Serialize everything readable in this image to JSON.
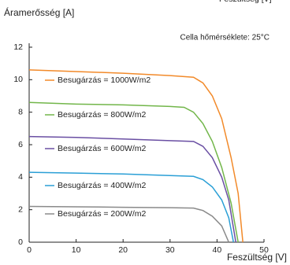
{
  "chart_data": {
    "type": "line",
    "ylabel": "Áramerősség [A]",
    "xlabel": "Feszültség [V]",
    "annotation": "Cella hőmérséklete: 25°C",
    "xlim": [
      0,
      50
    ],
    "xticks": [
      0,
      10,
      20,
      30,
      40,
      50
    ],
    "ylim": [
      0,
      12
    ],
    "yticks": [
      0,
      2,
      4,
      6,
      8,
      10,
      12
    ],
    "grid": false,
    "series": [
      {
        "name": "Besugárzás = 1000W/m2",
        "color": "#f28a2a",
        "x": [
          0,
          10,
          20,
          30,
          35,
          37,
          39,
          41,
          43,
          44.5,
          45.5
        ],
        "values": [
          10.6,
          10.5,
          10.4,
          10.25,
          10.15,
          9.8,
          9.0,
          7.6,
          5.2,
          3.0,
          0
        ]
      },
      {
        "name": "Besugárzás = 800W/m2",
        "color": "#72b64a",
        "x": [
          0,
          10,
          20,
          30,
          33,
          35,
          37,
          39,
          41,
          43,
          44.5
        ],
        "values": [
          8.6,
          8.5,
          8.45,
          8.35,
          8.3,
          8.0,
          7.3,
          6.2,
          4.6,
          2.4,
          0
        ]
      },
      {
        "name": "Besugárzás = 600W/m2",
        "color": "#6a4fa3",
        "x": [
          0,
          10,
          20,
          30,
          35,
          37,
          39,
          41,
          42.5,
          44
        ],
        "values": [
          6.5,
          6.45,
          6.35,
          6.25,
          6.2,
          5.9,
          5.2,
          4.0,
          2.6,
          0
        ]
      },
      {
        "name": "Besugárzás = 400W/m2",
        "color": "#2a9fd6",
        "x": [
          0,
          10,
          20,
          30,
          35,
          37,
          39,
          41,
          42.5,
          43.5
        ],
        "values": [
          4.3,
          4.25,
          4.2,
          4.1,
          4.05,
          3.85,
          3.4,
          2.6,
          1.5,
          0
        ]
      },
      {
        "name": "Besugárzás = 200W/m2",
        "color": "#8a8a8a",
        "x": [
          0,
          10,
          20,
          30,
          35,
          37,
          39,
          41,
          42.5
        ],
        "values": [
          2.2,
          2.18,
          2.15,
          2.12,
          2.1,
          1.95,
          1.6,
          1.0,
          0
        ]
      }
    ]
  }
}
